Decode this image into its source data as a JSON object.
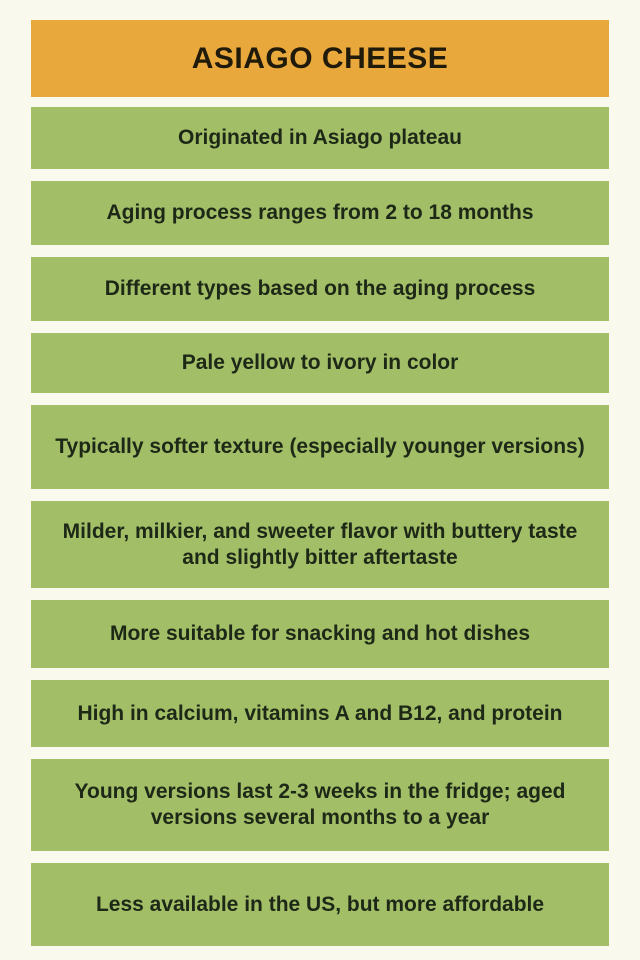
{
  "header": {
    "title": "ASIAGO CHEESE"
  },
  "facts": [
    "Originated in Asiago plateau",
    "Aging process ranges from 2 to 18 months",
    "Different types based on the aging process",
    "Pale yellow to ivory in color",
    "Typically softer texture (especially younger versions)",
    "Milder, milkier, and sweeter flavor with buttery taste and slightly bitter aftertaste",
    "More suitable for snacking and hot dishes",
    "High in calcium, vitamins A and B12, and protein",
    "Young versions last 2-3 weeks in the fridge; aged versions several months to a year",
    "Less available in the US, but more affordable"
  ],
  "colors": {
    "page_background": "#FAF9ED",
    "banner_background": "#E9A83C",
    "fact_background": "#A2BF68",
    "banner_text": "#1F1A09",
    "fact_text": "#1E2817"
  }
}
